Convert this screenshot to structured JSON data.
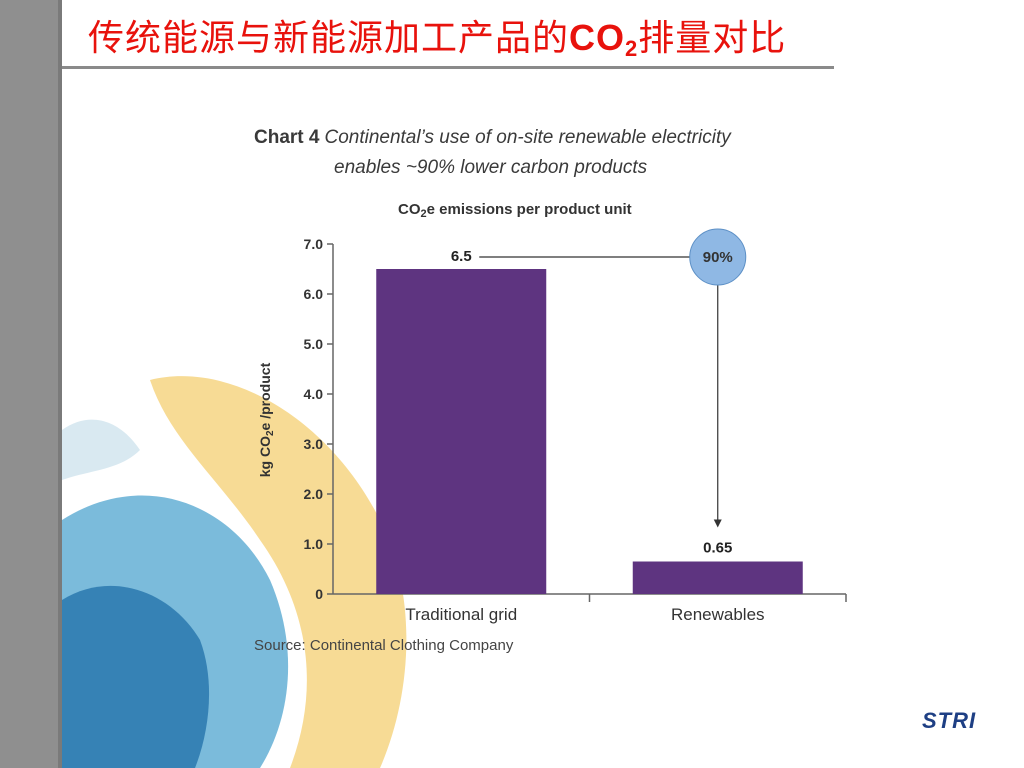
{
  "slide": {
    "title_prefix": "传统能源与新能源加工产品的",
    "title_formula": "CO",
    "title_formula_sub": "2",
    "title_suffix": "排量对比",
    "logo_text": "STRI",
    "title_color": "#e8120c",
    "logo_color": "#1e3f84"
  },
  "chart_data": {
    "type": "bar",
    "heading_label": "Chart 4",
    "heading_line1": "Continental’s use of on-site renewable electricity",
    "heading_line2": "enables ~90% lower carbon products",
    "subtitle_pre": "CO",
    "subtitle_sub": "2",
    "subtitle_post": "e emissions per product unit",
    "ylabel_pre": "kg CO",
    "ylabel_sub": "2",
    "ylabel_post": "e /product",
    "categories": [
      "Traditional grid",
      "Renewables"
    ],
    "values": [
      6.5,
      0.65
    ],
    "value_labels": [
      "6.5",
      "0.65"
    ],
    "ylim": [
      0,
      7
    ],
    "yticks": [
      "0",
      "1.0",
      "2.0",
      "3.0",
      "4.0",
      "5.0",
      "6.0",
      "7.0"
    ],
    "annotation": "90%",
    "source": "Source: Continental Clothing Company",
    "bar_color": "#5e3480",
    "annotation_color": "#8fb8e4",
    "grid": false
  }
}
